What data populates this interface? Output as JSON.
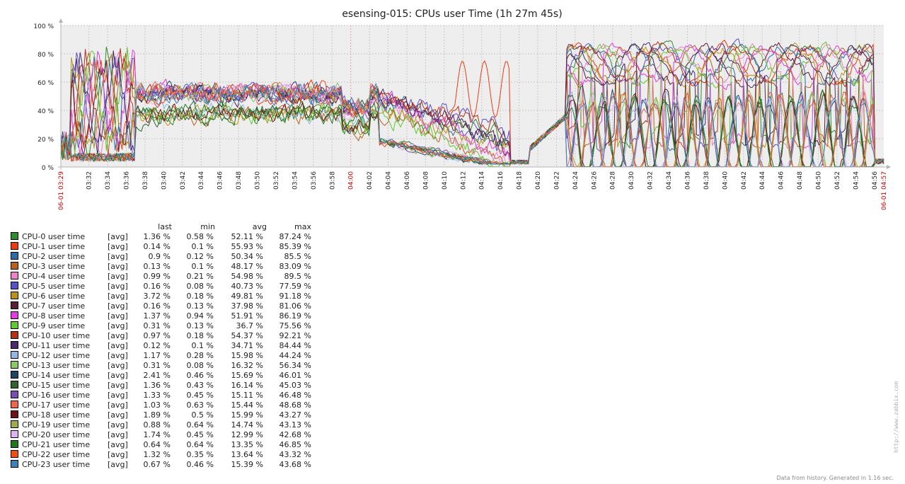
{
  "chart_data": {
    "type": "line",
    "title": "esensing-015: CPUs user Time (1h 27m 45s)",
    "ylim": [
      0,
      100
    ],
    "y_ticks": [
      "0 %",
      "20 %",
      "40 %",
      "60 %",
      "80 %",
      "100 %"
    ],
    "x_start_label": "06-01 03:29",
    "x_end_label": "06-01 04:57",
    "x_ticks": [
      "03:32",
      "03:34",
      "03:36",
      "03:38",
      "03:40",
      "03:42",
      "03:44",
      "03:46",
      "03:48",
      "03:50",
      "03:52",
      "03:54",
      "03:56",
      "03:58",
      "04:00",
      "04:02",
      "04:04",
      "04:06",
      "04:08",
      "04:10",
      "04:12",
      "04:14",
      "04:16",
      "04:18",
      "04:20",
      "04:22",
      "04:24",
      "04:26",
      "04:28",
      "04:30",
      "04:32",
      "04:34",
      "04:36",
      "04:38",
      "04:40",
      "04:42",
      "04:44",
      "04:46",
      "04:48",
      "04:50",
      "04:52",
      "04:54",
      "04:56"
    ],
    "x_ticks_highlight": [
      "04:00"
    ],
    "grid": true,
    "legend_columns": [
      "last",
      "min",
      "avg",
      "max"
    ],
    "series": [
      {
        "name": "CPU-0 user time",
        "func": "[avg]",
        "color": "#2e8b2e",
        "last": "1.36 %",
        "min": "0.58 %",
        "avg": "52.11 %",
        "max": "87.24 %"
      },
      {
        "name": "CPU-1 user time",
        "func": "[avg]",
        "color": "#ee3a10",
        "last": "0.14 %",
        "min": "0.1 %",
        "avg": "55.93 %",
        "max": "85.39 %"
      },
      {
        "name": "CPU-2 user time",
        "func": "[avg]",
        "color": "#2d6aa6",
        "last": "0.9 %",
        "min": "0.12 %",
        "avg": "50.34 %",
        "max": "85.5 %"
      },
      {
        "name": "CPU-3 user time",
        "func": "[avg]",
        "color": "#b8601e",
        "last": "0.13 %",
        "min": "0.1 %",
        "avg": "48.17 %",
        "max": "83.09 %"
      },
      {
        "name": "CPU-4 user time",
        "func": "[avg]",
        "color": "#ee82c8",
        "last": "0.99 %",
        "min": "0.21 %",
        "avg": "54.98 %",
        "max": "89.5 %"
      },
      {
        "name": "CPU-5 user time",
        "func": "[avg]",
        "color": "#5a50c8",
        "last": "0.16 %",
        "min": "0.08 %",
        "avg": "40.73 %",
        "max": "77.59 %"
      },
      {
        "name": "CPU-6 user time",
        "func": "[avg]",
        "color": "#b89418",
        "last": "3.72 %",
        "min": "0.18 %",
        "avg": "49.81 %",
        "max": "91.18 %"
      },
      {
        "name": "CPU-7 user time",
        "func": "[avg]",
        "color": "#5a1e36",
        "last": "0.16 %",
        "min": "0.13 %",
        "avg": "37.98 %",
        "max": "81.06 %"
      },
      {
        "name": "CPU-8 user time",
        "func": "[avg]",
        "color": "#e03ce0",
        "last": "1.37 %",
        "min": "0.94 %",
        "avg": "51.91 %",
        "max": "86.19 %"
      },
      {
        "name": "CPU-9 user time",
        "func": "[avg]",
        "color": "#64c832",
        "last": "0.31 %",
        "min": "0.13 %",
        "avg": "36.7 %",
        "max": "75.56 %"
      },
      {
        "name": "CPU-10 user time",
        "func": "[avg]",
        "color": "#b43214",
        "last": "0.97 %",
        "min": "0.18 %",
        "avg": "54.37 %",
        "max": "92.21 %"
      },
      {
        "name": "CPU-11 user time",
        "func": "[avg]",
        "color": "#4a2a6a",
        "last": "0.12 %",
        "min": "0.1 %",
        "avg": "34.71 %",
        "max": "84.44 %"
      },
      {
        "name": "CPU-12 user time",
        "func": "[avg]",
        "color": "#96b4e6",
        "last": "1.17 %",
        "min": "0.28 %",
        "avg": "15.98 %",
        "max": "44.24 %"
      },
      {
        "name": "CPU-13 user time",
        "func": "[avg]",
        "color": "#8cc864",
        "last": "0.31 %",
        "min": "0.08 %",
        "avg": "16.32 %",
        "max": "56.34 %"
      },
      {
        "name": "CPU-14 user time",
        "func": "[avg]",
        "color": "#1e4664",
        "last": "2.41 %",
        "min": "0.46 %",
        "avg": "15.69 %",
        "max": "46.01 %"
      },
      {
        "name": "CPU-15 user time",
        "func": "[avg]",
        "color": "#326432",
        "last": "1.36 %",
        "min": "0.43 %",
        "avg": "16.14 %",
        "max": "45.03 %"
      },
      {
        "name": "CPU-16 user time",
        "func": "[avg]",
        "color": "#7850b4",
        "last": "1.33 %",
        "min": "0.45 %",
        "avg": "15.11 %",
        "max": "46.48 %"
      },
      {
        "name": "CPU-17 user time",
        "func": "[avg]",
        "color": "#f06450",
        "last": "1.03 %",
        "min": "0.63 %",
        "avg": "15.44 %",
        "max": "48.68 %"
      },
      {
        "name": "CPU-18 user time",
        "func": "[avg]",
        "color": "#6e1414",
        "last": "1.89 %",
        "min": "0.5 %",
        "avg": "15.99 %",
        "max": "43.27 %"
      },
      {
        "name": "CPU-19 user time",
        "func": "[avg]",
        "color": "#a0aa50",
        "last": "0.88 %",
        "min": "0.64 %",
        "avg": "14.74 %",
        "max": "43.13 %"
      },
      {
        "name": "CPU-20 user time",
        "func": "[avg]",
        "color": "#dcb4f0",
        "last": "1.74 %",
        "min": "0.45 %",
        "avg": "12.99 %",
        "max": "42.68 %"
      },
      {
        "name": "CPU-21 user time",
        "func": "[avg]",
        "color": "#1e781e",
        "last": "0.64 %",
        "min": "0.64 %",
        "avg": "13.35 %",
        "max": "46.85 %"
      },
      {
        "name": "CPU-22 user time",
        "func": "[avg]",
        "color": "#f05014",
        "last": "1.32 %",
        "min": "0.35 %",
        "avg": "13.64 %",
        "max": "43.32 %"
      },
      {
        "name": "CPU-23 user time",
        "func": "[avg]",
        "color": "#3c82b4",
        "last": "0.67 %",
        "min": "0.46 %",
        "avg": "15.39 %",
        "max": "43.68 %"
      }
    ]
  },
  "footer": "Data from history. Generated in 1.16 sec.",
  "watermark": "http://www.zabbix.com"
}
